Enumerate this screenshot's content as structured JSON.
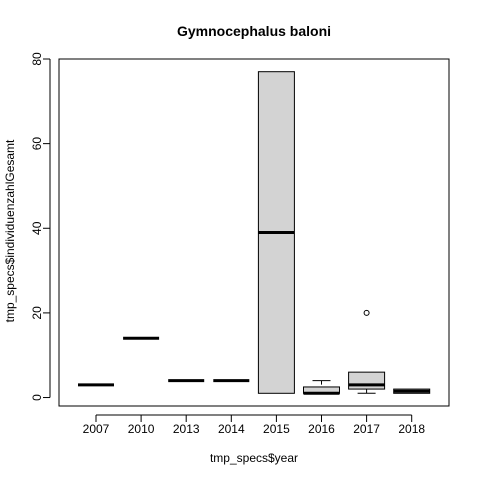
{
  "chart_data": {
    "type": "boxplot",
    "title": "Gymnocephalus baloni",
    "xlabel": "tmp_specs$year",
    "ylabel": "tmp_specs$individuenzahlGesamt",
    "ylim": [
      -2,
      80
    ],
    "yticks": [
      0,
      20,
      40,
      60,
      80
    ],
    "grid": false,
    "legend": "none",
    "box_fill": "#d3d3d3",
    "categories": [
      "2007",
      "2010",
      "2013",
      "2014",
      "2015",
      "2016",
      "2017",
      "2018"
    ],
    "boxes": [
      {
        "min": 3,
        "q1": 3,
        "median": 3,
        "q3": 3,
        "max": 3,
        "outliers": []
      },
      {
        "min": 14,
        "q1": 14,
        "median": 14,
        "q3": 14,
        "max": 14,
        "outliers": []
      },
      {
        "min": 4,
        "q1": 4,
        "median": 4,
        "q3": 4,
        "max": 4,
        "outliers": []
      },
      {
        "min": 4,
        "q1": 4,
        "median": 4,
        "q3": 4,
        "max": 4,
        "outliers": []
      },
      {
        "min": 1,
        "q1": 1,
        "median": 39,
        "q3": 77,
        "max": 77,
        "outliers": []
      },
      {
        "min": 1,
        "q1": 1,
        "median": 1,
        "q3": 2.5,
        "max": 4,
        "outliers": []
      },
      {
        "min": 1,
        "q1": 2,
        "median": 3,
        "q3": 6,
        "max": 6,
        "outliers": [
          20
        ]
      },
      {
        "min": 1,
        "q1": 1,
        "median": 1.5,
        "q3": 2,
        "max": 2,
        "outliers": []
      }
    ]
  }
}
